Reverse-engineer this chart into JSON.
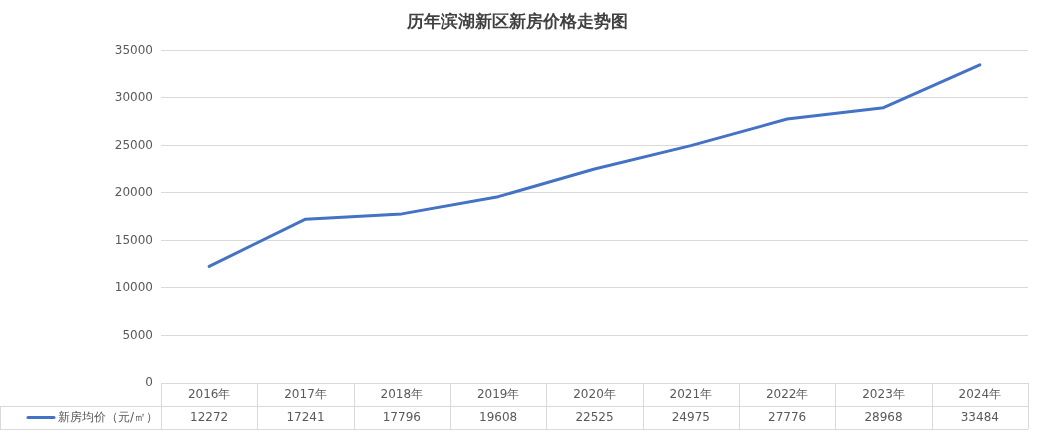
{
  "chart_data": {
    "type": "line",
    "title": "历年滨湖新区新房价格走势图",
    "categories": [
      "2016年",
      "2017年",
      "2018年",
      "2019年",
      "2020年",
      "2021年",
      "2022年",
      "2023年",
      "2024年"
    ],
    "series": [
      {
        "name": "新房均价（元/㎡）",
        "color": "#4472c4",
        "values": [
          12272,
          17241,
          17796,
          19608,
          22525,
          24975,
          27776,
          28968,
          33484
        ]
      }
    ],
    "ylim": [
      0,
      35000
    ],
    "yticks": [
      0,
      5000,
      10000,
      15000,
      20000,
      25000,
      30000,
      35000
    ],
    "grid": "y",
    "legend": "bottom left",
    "marker": "none",
    "line_style": "solid",
    "data_labels": true
  }
}
